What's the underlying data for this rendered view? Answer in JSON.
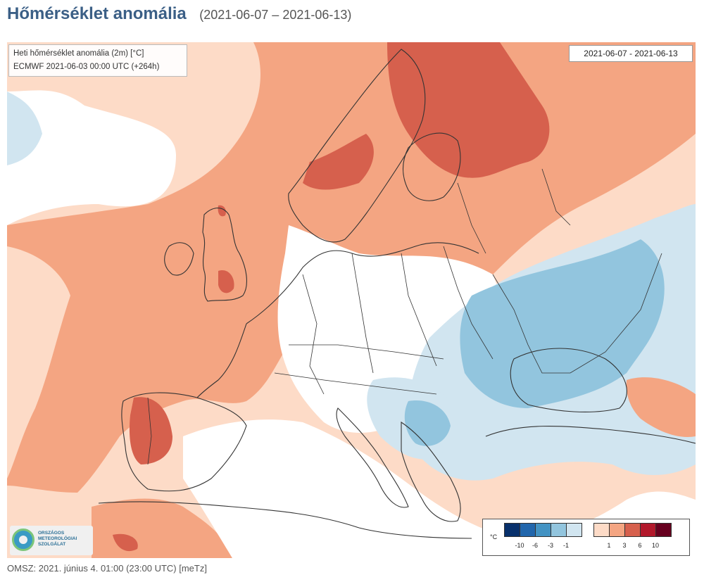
{
  "header": {
    "title": "Hőmérséklet anomália",
    "date_range": "(2021-06-07 – 2021-06-13)"
  },
  "map": {
    "info_line1": "Heti hőmérséklet anomália (2m) [°C]",
    "info_line2": "ECMWF 2021-06-03 00:00 UTC (+264h)",
    "date_box": "2021-06-07 - 2021-06-13"
  },
  "legend": {
    "unit": "°C",
    "cold_colors": [
      "#08306b",
      "#2166ac",
      "#4393c3",
      "#92c5de",
      "#d1e5f0"
    ],
    "warm_colors": [
      "#fddbc7",
      "#f4a582",
      "#d6604d",
      "#b2182b",
      "#67001f"
    ],
    "cold_ticks": [
      "-10",
      "-6",
      "-3",
      "-1"
    ],
    "warm_ticks": [
      "1",
      "3",
      "6",
      "10"
    ]
  },
  "logo": {
    "line1": "ORSZÁGOS",
    "line2": "METEOROLÓGIAI",
    "line3": "SZOLGÁLAT"
  },
  "footer": {
    "text": "OMSZ: 2021. június 4. 01:00 (23:00 UTC)  [meTz]"
  }
}
